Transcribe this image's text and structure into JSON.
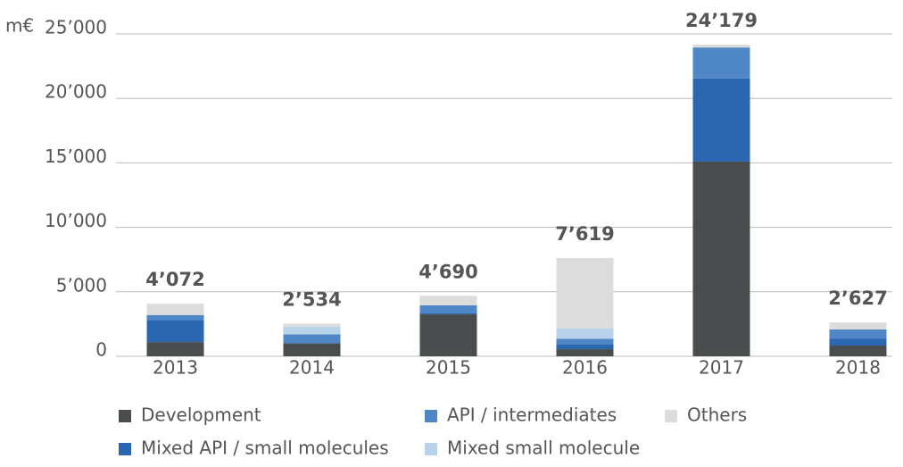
{
  "chart_data": {
    "type": "stacked-bar",
    "y_label": "m€",
    "categories": [
      "2013",
      "2014",
      "2015",
      "2016",
      "2017",
      "2018"
    ],
    "series": [
      {
        "name": "Development",
        "color": "#4a4d4e",
        "values": [
          1100,
          1000,
          3250,
          550,
          15100,
          830
        ]
      },
      {
        "name": "Mixed API / small molecules",
        "color": "#2a67b0",
        "values": [
          1700,
          0,
          100,
          400,
          6450,
          550
        ]
      },
      {
        "name": "API / intermediates",
        "color": "#4f86c6",
        "values": [
          400,
          700,
          600,
          400,
          2400,
          700
        ]
      },
      {
        "name": "Mixed small molecule",
        "color": "#b8d2ea",
        "values": [
          0,
          600,
          0,
          800,
          0,
          0
        ]
      },
      {
        "name": "Others",
        "color": "#dcdcdc",
        "values": [
          872,
          234,
          740,
          5469,
          229,
          547
        ]
      }
    ],
    "totals": [
      4072,
      2534,
      4690,
      7619,
      24179,
      2627
    ],
    "total_labels": [
      "4’072",
      "2’534",
      "4’690",
      "7’619",
      "24’179",
      "2’627"
    ],
    "ylim": [
      0,
      25000
    ],
    "yticks": [
      0,
      {
        "value": 5000,
        "label": "5’000"
      },
      {
        "value": 10000,
        "label": "10’000"
      },
      {
        "value": 15000,
        "label": "15’000"
      },
      {
        "value": 20000,
        "label": "20’000"
      },
      {
        "value": 25000,
        "label": "25’000"
      }
    ],
    "grid": true
  }
}
